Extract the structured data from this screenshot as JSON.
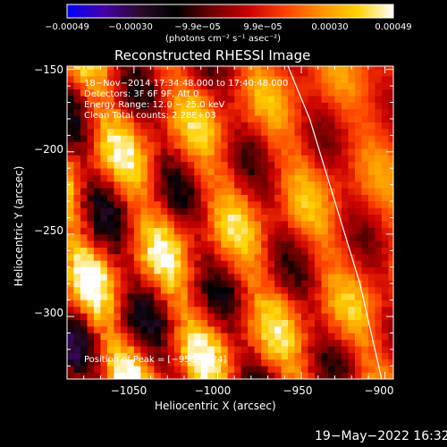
{
  "chart_data": {
    "type": "heatmap",
    "title": "Reconstructed RHESSI Image",
    "xlabel": "Heliocentric X (arcsec)",
    "ylabel": "Heliocentric Y (arcsec)",
    "xlim": [
      -1090,
      -895
    ],
    "ylim": [
      -338,
      -148
    ],
    "x_ticks": [
      {
        "value": -1050,
        "label": "−1050"
      },
      {
        "value": -1000,
        "label": "−1000"
      },
      {
        "value": -950,
        "label": "−950"
      },
      {
        "value": -900,
        "label": "−900"
      }
    ],
    "y_ticks": [
      {
        "value": -150,
        "label": "−150"
      },
      {
        "value": -200,
        "label": "−200"
      },
      {
        "value": -250,
        "label": "−250"
      },
      {
        "value": -300,
        "label": "−300"
      }
    ],
    "colorbar": {
      "range": [
        -0.00049,
        0.00049
      ],
      "ticks": [
        {
          "value": -0.00049,
          "label": "−0.00049"
        },
        {
          "value": -0.0003,
          "label": "−0.00030"
        },
        {
          "value": -9.9e-05,
          "label": "−9.9e−05"
        },
        {
          "value": 9.9e-05,
          "label": "9.9e−05"
        },
        {
          "value": 0.0003,
          "label": "0.00030"
        },
        {
          "value": 0.00049,
          "label": "0.00049"
        }
      ],
      "unit_label": "(photons cm⁻² s⁻¹ asec⁻²)",
      "colors": [
        "#0000ff",
        "#4400aa",
        "#2a0a2a",
        "#000000",
        "#6e0000",
        "#c80000",
        "#ff4000",
        "#ff9000",
        "#ffd200",
        "#ffffff"
      ]
    },
    "annotations": [
      "18−Nov−2014 17:34:48.000 to 17:40:48.000",
      "Detectors: 3F 6F 9F, Att 0",
      "Energy Range: 12.0 − 25.0 keV",
      "Clean     Total counts: 2.28E+03"
    ],
    "peak_label": "Position of Peak = [−956,−324]",
    "limb_line": {
      "points": [
        [
          -958,
          -148
        ],
        [
          -945,
          -180
        ],
        [
          -930,
          -230
        ],
        [
          -915,
          -280
        ],
        [
          -902,
          -338
        ]
      ]
    },
    "pixel_grid": {
      "x0": -1090,
      "x1": -895,
      "y0": -338,
      "y1": -148,
      "cell_arcsec": 4
    }
  },
  "footer_date": "19−May−2022 16:32"
}
